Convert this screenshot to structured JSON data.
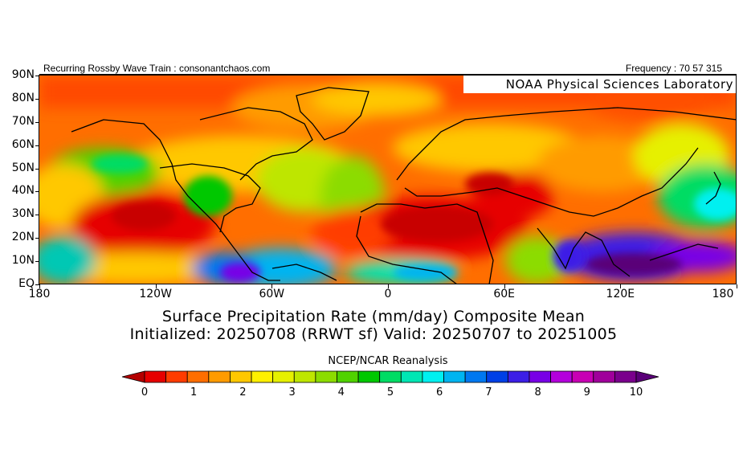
{
  "header": {
    "left_text": "Recurring Rossby Wave Train : consonantchaos.com",
    "right_text": "Frequency : 70 57 315",
    "lab_label": "NOAA Physical Sciences Laboratory"
  },
  "map": {
    "lat_labels": [
      "90N",
      "80N",
      "70N",
      "60N",
      "50N",
      "40N",
      "30N",
      "20N",
      "10N",
      "EQ"
    ],
    "lon_labels": [
      "180",
      "120W",
      "60W",
      "0",
      "60E",
      "120E",
      "180"
    ],
    "lat_range": [
      0,
      90
    ],
    "lon_range": [
      -180,
      180
    ],
    "field": "Surface Precipitation Rate (mm/day) Composite Mean"
  },
  "titles": {
    "line1": "Surface Precipitation Rate (mm/day) Composite Mean",
    "line2": "Initialized: 20250708 (RRWT sf) Valid: 20250707 to 20251005",
    "source": "NCEP/NCAR Reanalysis"
  },
  "colorbar": {
    "labels": [
      "0",
      "1",
      "2",
      "3",
      "4",
      "5",
      "6",
      "7",
      "8",
      "9",
      "10"
    ],
    "colors": [
      "#b40000",
      "#e60000",
      "#ff3c00",
      "#ff6e00",
      "#ff9b00",
      "#ffc800",
      "#fff000",
      "#e6f000",
      "#bee600",
      "#8cdc00",
      "#50d200",
      "#00c800",
      "#00dc64",
      "#00e6b4",
      "#00f0f0",
      "#00b4f0",
      "#0078f0",
      "#0040e6",
      "#3c1ee6",
      "#7800e6",
      "#b400dc",
      "#c800b4",
      "#a0009b",
      "#7a008c",
      "#5a0078"
    ]
  }
}
